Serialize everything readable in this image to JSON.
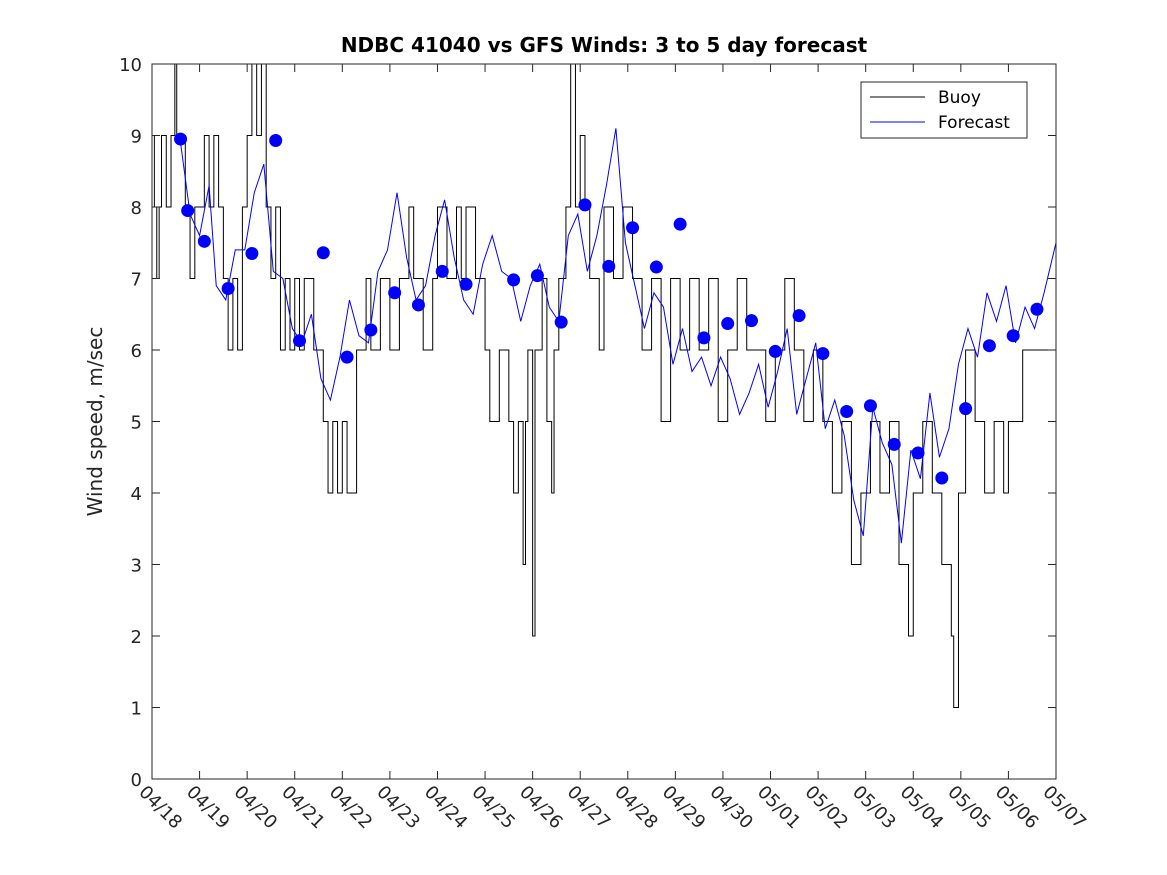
{
  "chart_data": {
    "type": "line",
    "title": "NDBC 41040 vs GFS Winds: 3 to 5 day forecast",
    "xlabel": "",
    "ylabel": "Wind speed, m/sec",
    "xlim": [
      "2016-04-18",
      "2016-05-07"
    ],
    "ylim": [
      0,
      10
    ],
    "y_ticks": [
      0,
      1,
      2,
      3,
      4,
      5,
      6,
      7,
      8,
      9,
      10
    ],
    "x_ticks": [
      "04/18",
      "04/19",
      "04/20",
      "04/21",
      "04/22",
      "04/23",
      "04/24",
      "04/25",
      "04/26",
      "04/27",
      "04/28",
      "04/29",
      "04/30",
      "05/01",
      "05/02",
      "05/03",
      "05/04",
      "05/05",
      "05/06",
      "05/07"
    ],
    "grid": false,
    "legend_position": "top-right",
    "legend": [
      "Buoy",
      "Forecast"
    ],
    "colors": {
      "buoy": "#000000",
      "forecast": "#0000ff",
      "markers": "#0000ff"
    },
    "series": [
      {
        "name": "Buoy",
        "style": "step",
        "points": [
          [
            0.0,
            9
          ],
          [
            0.05,
            8
          ],
          [
            0.1,
            7
          ],
          [
            0.15,
            8
          ],
          [
            0.2,
            9
          ],
          [
            0.3,
            8
          ],
          [
            0.4,
            9
          ],
          [
            0.48,
            10
          ],
          [
            0.52,
            9
          ],
          [
            0.6,
            9
          ],
          [
            0.7,
            8
          ],
          [
            0.8,
            7
          ],
          [
            0.9,
            8
          ],
          [
            1.0,
            8
          ],
          [
            1.1,
            9
          ],
          [
            1.2,
            8
          ],
          [
            1.3,
            9
          ],
          [
            1.4,
            8
          ],
          [
            1.5,
            7
          ],
          [
            1.6,
            6
          ],
          [
            1.7,
            7
          ],
          [
            1.8,
            6
          ],
          [
            1.9,
            8
          ],
          [
            2.0,
            9
          ],
          [
            2.1,
            10
          ],
          [
            2.2,
            9
          ],
          [
            2.3,
            10
          ],
          [
            2.4,
            8
          ],
          [
            2.5,
            7
          ],
          [
            2.6,
            8
          ],
          [
            2.7,
            6
          ],
          [
            2.8,
            7
          ],
          [
            2.9,
            6
          ],
          [
            3.0,
            7
          ],
          [
            3.1,
            6
          ],
          [
            3.2,
            7
          ],
          [
            3.4,
            6
          ],
          [
            3.6,
            5
          ],
          [
            3.7,
            4
          ],
          [
            3.8,
            5
          ],
          [
            3.9,
            4
          ],
          [
            4.0,
            5
          ],
          [
            4.1,
            4
          ],
          [
            4.3,
            6
          ],
          [
            4.5,
            7
          ],
          [
            4.6,
            6
          ],
          [
            4.8,
            7
          ],
          [
            5.0,
            6
          ],
          [
            5.2,
            7
          ],
          [
            5.4,
            8
          ],
          [
            5.5,
            7
          ],
          [
            5.7,
            6
          ],
          [
            5.9,
            7
          ],
          [
            6.0,
            8
          ],
          [
            6.2,
            7
          ],
          [
            6.4,
            8
          ],
          [
            6.5,
            7
          ],
          [
            6.6,
            8
          ],
          [
            6.8,
            7
          ],
          [
            7.0,
            6
          ],
          [
            7.1,
            5
          ],
          [
            7.3,
            6
          ],
          [
            7.5,
            5
          ],
          [
            7.6,
            4
          ],
          [
            7.7,
            5
          ],
          [
            7.8,
            3
          ],
          [
            7.85,
            5
          ],
          [
            7.9,
            6
          ],
          [
            8.0,
            2
          ],
          [
            8.05,
            6
          ],
          [
            8.2,
            7
          ],
          [
            8.3,
            5
          ],
          [
            8.4,
            4
          ],
          [
            8.45,
            6
          ],
          [
            8.55,
            7
          ],
          [
            8.7,
            8
          ],
          [
            8.8,
            10
          ],
          [
            8.9,
            8
          ],
          [
            9.0,
            9
          ],
          [
            9.1,
            8
          ],
          [
            9.2,
            7
          ],
          [
            9.4,
            6
          ],
          [
            9.5,
            8
          ],
          [
            9.7,
            7
          ],
          [
            9.9,
            8
          ],
          [
            10.1,
            7
          ],
          [
            10.3,
            6
          ],
          [
            10.5,
            7
          ],
          [
            10.7,
            5
          ],
          [
            10.9,
            7
          ],
          [
            11.1,
            6
          ],
          [
            11.3,
            7
          ],
          [
            11.5,
            6
          ],
          [
            11.7,
            7
          ],
          [
            11.9,
            5
          ],
          [
            12.1,
            6
          ],
          [
            12.3,
            7
          ],
          [
            12.5,
            6
          ],
          [
            12.7,
            6
          ],
          [
            12.9,
            5
          ],
          [
            13.1,
            6
          ],
          [
            13.3,
            7
          ],
          [
            13.5,
            6
          ],
          [
            13.7,
            5
          ],
          [
            13.9,
            6
          ],
          [
            14.1,
            5
          ],
          [
            14.3,
            4
          ],
          [
            14.5,
            5
          ],
          [
            14.7,
            3
          ],
          [
            14.9,
            4
          ],
          [
            15.1,
            5
          ],
          [
            15.3,
            4
          ],
          [
            15.5,
            5
          ],
          [
            15.7,
            3
          ],
          [
            15.9,
            2
          ],
          [
            16.0,
            4
          ],
          [
            16.2,
            5
          ],
          [
            16.4,
            4
          ],
          [
            16.6,
            3
          ],
          [
            16.8,
            2
          ],
          [
            16.85,
            1
          ],
          [
            16.95,
            4
          ],
          [
            17.1,
            6
          ],
          [
            17.3,
            5
          ],
          [
            17.5,
            4
          ],
          [
            17.7,
            5
          ],
          [
            17.9,
            4
          ],
          [
            18.0,
            5
          ],
          [
            18.3,
            6
          ],
          [
            18.6,
            6
          ],
          [
            19.0,
            6
          ]
        ]
      },
      {
        "name": "Forecast",
        "style": "line",
        "points": [
          [
            0.6,
            8.9
          ],
          [
            0.8,
            7.9
          ],
          [
            1.0,
            7.6
          ],
          [
            1.2,
            8.3
          ],
          [
            1.35,
            6.9
          ],
          [
            1.55,
            6.7
          ],
          [
            1.75,
            7.4
          ],
          [
            1.95,
            7.4
          ],
          [
            2.15,
            8.2
          ],
          [
            2.35,
            8.6
          ],
          [
            2.55,
            7.1
          ],
          [
            2.75,
            7.0
          ],
          [
            2.95,
            6.3
          ],
          [
            3.15,
            6.1
          ],
          [
            3.35,
            6.5
          ],
          [
            3.55,
            5.6
          ],
          [
            3.75,
            5.3
          ],
          [
            3.95,
            5.9
          ],
          [
            4.15,
            6.7
          ],
          [
            4.35,
            6.2
          ],
          [
            4.55,
            6.1
          ],
          [
            4.75,
            7.1
          ],
          [
            4.95,
            7.4
          ],
          [
            5.15,
            8.2
          ],
          [
            5.35,
            7.3
          ],
          [
            5.55,
            6.7
          ],
          [
            5.75,
            6.9
          ],
          [
            5.95,
            7.6
          ],
          [
            6.15,
            8.1
          ],
          [
            6.35,
            7.3
          ],
          [
            6.55,
            6.7
          ],
          [
            6.75,
            6.5
          ],
          [
            6.95,
            7.2
          ],
          [
            7.15,
            7.6
          ],
          [
            7.35,
            7.1
          ],
          [
            7.55,
            7.0
          ],
          [
            7.75,
            6.4
          ],
          [
            7.95,
            6.9
          ],
          [
            8.15,
            7.2
          ],
          [
            8.35,
            6.6
          ],
          [
            8.55,
            6.4
          ],
          [
            8.75,
            7.6
          ],
          [
            8.95,
            7.9
          ],
          [
            9.15,
            7.1
          ],
          [
            9.35,
            7.6
          ],
          [
            9.55,
            8.3
          ],
          [
            9.75,
            9.1
          ],
          [
            9.95,
            7.5
          ],
          [
            10.15,
            6.9
          ],
          [
            10.35,
            6.3
          ],
          [
            10.55,
            6.8
          ],
          [
            10.75,
            6.6
          ],
          [
            10.95,
            5.8
          ],
          [
            11.15,
            6.3
          ],
          [
            11.35,
            5.7
          ],
          [
            11.55,
            5.9
          ],
          [
            11.75,
            5.5
          ],
          [
            11.95,
            5.9
          ],
          [
            12.15,
            5.6
          ],
          [
            12.35,
            5.1
          ],
          [
            12.55,
            5.4
          ],
          [
            12.75,
            5.8
          ],
          [
            12.95,
            5.2
          ],
          [
            13.15,
            5.7
          ],
          [
            13.35,
            6.3
          ],
          [
            13.55,
            5.1
          ],
          [
            13.75,
            5.6
          ],
          [
            13.95,
            6.1
          ],
          [
            14.15,
            4.9
          ],
          [
            14.35,
            5.3
          ],
          [
            14.55,
            4.8
          ],
          [
            14.75,
            3.9
          ],
          [
            14.95,
            3.4
          ],
          [
            15.15,
            5.2
          ],
          [
            15.35,
            4.7
          ],
          [
            15.55,
            4.4
          ],
          [
            15.75,
            3.3
          ],
          [
            15.95,
            4.6
          ],
          [
            16.15,
            4.2
          ],
          [
            16.35,
            5.4
          ],
          [
            16.55,
            4.5
          ],
          [
            16.75,
            4.9
          ],
          [
            16.95,
            5.8
          ],
          [
            17.15,
            6.3
          ],
          [
            17.35,
            5.9
          ],
          [
            17.55,
            6.8
          ],
          [
            17.75,
            6.4
          ],
          [
            17.95,
            6.9
          ],
          [
            18.15,
            6.1
          ],
          [
            18.35,
            6.6
          ],
          [
            18.55,
            6.3
          ],
          [
            18.75,
            6.8
          ],
          [
            19.0,
            7.5
          ]
        ]
      }
    ],
    "markers": [
      [
        0.6,
        8.95
      ],
      [
        0.75,
        7.95
      ],
      [
        1.1,
        7.52
      ],
      [
        1.6,
        6.86
      ],
      [
        2.1,
        7.35
      ],
      [
        2.6,
        8.93
      ],
      [
        3.1,
        6.13
      ],
      [
        3.6,
        7.36
      ],
      [
        4.1,
        5.9
      ],
      [
        4.6,
        6.28
      ],
      [
        5.1,
        6.8
      ],
      [
        5.6,
        6.63
      ],
      [
        6.1,
        7.1
      ],
      [
        6.6,
        6.92
      ],
      [
        7.6,
        6.98
      ],
      [
        8.1,
        7.04
      ],
      [
        8.6,
        6.39
      ],
      [
        9.1,
        8.03
      ],
      [
        9.6,
        7.17
      ],
      [
        10.1,
        7.71
      ],
      [
        10.6,
        7.16
      ],
      [
        11.1,
        7.76
      ],
      [
        11.6,
        6.17
      ],
      [
        12.1,
        6.37
      ],
      [
        12.6,
        6.41
      ],
      [
        13.1,
        5.98
      ],
      [
        13.6,
        6.48
      ],
      [
        14.1,
        5.95
      ],
      [
        14.6,
        5.14
      ],
      [
        15.1,
        5.22
      ],
      [
        15.6,
        4.68
      ],
      [
        16.1,
        4.56
      ],
      [
        16.6,
        4.21
      ],
      [
        17.1,
        5.18
      ],
      [
        17.6,
        6.06
      ],
      [
        18.1,
        6.2
      ],
      [
        18.6,
        6.57
      ]
    ]
  }
}
